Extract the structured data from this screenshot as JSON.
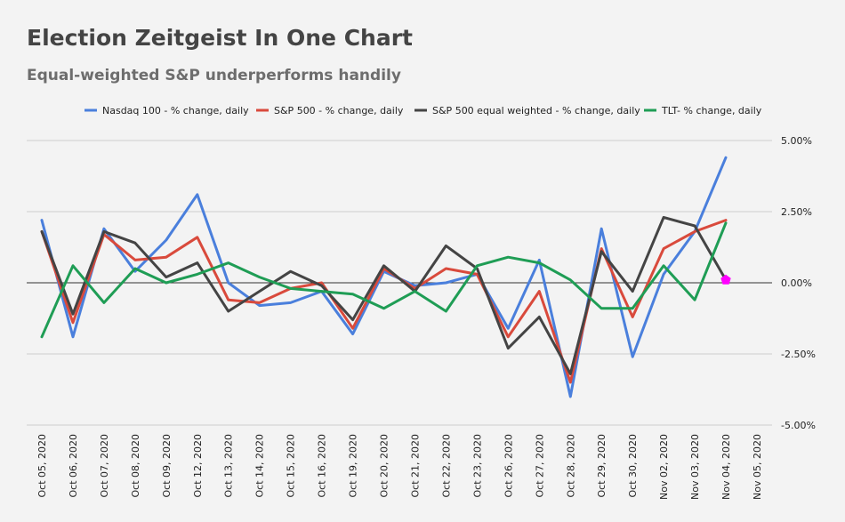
{
  "header": {
    "title": "Election Zeitgeist In One Chart",
    "subtitle": "Equal-weighted S&P underperforms handily"
  },
  "chart_data": {
    "type": "line",
    "title": "Election Zeitgeist In One Chart",
    "subtitle": "Equal-weighted S&P underperforms handily",
    "legend_position": "top",
    "grid": true,
    "ylim": [
      -5,
      5
    ],
    "yticks": [
      5,
      2.5,
      0,
      -2.5,
      -5
    ],
    "ytick_labels": [
      "5.00%",
      "2.50%",
      "0.00%",
      "-2.50%",
      "-5.00%"
    ],
    "x": [
      "Oct 05, 2020",
      "Oct 06, 2020",
      "Oct 07, 2020",
      "Oct 08, 2020",
      "Oct 09, 2020",
      "Oct 12, 2020",
      "Oct 13, 2020",
      "Oct 14, 2020",
      "Oct 15, 2020",
      "Oct 16, 2020",
      "Oct 19, 2020",
      "Oct 20, 2020",
      "Oct 21, 2020",
      "Oct 22, 2020",
      "Oct 23, 2020",
      "Oct 26, 2020",
      "Oct 27, 2020",
      "Oct 28, 2020",
      "Oct 29, 2020",
      "Oct 30, 2020",
      "Nov 02, 2020",
      "Nov 03, 2020",
      "Nov 04, 2020",
      "Nov 05, 2020"
    ],
    "series": [
      {
        "name": "Nasdaq 100 - % change, daily",
        "color": "#4a7fdc",
        "values": [
          2.2,
          -1.9,
          1.9,
          0.4,
          1.5,
          3.1,
          0.0,
          -0.8,
          -0.7,
          -0.3,
          -1.8,
          0.4,
          -0.1,
          0.0,
          0.3,
          -1.6,
          0.8,
          -4.0,
          1.9,
          -2.6,
          0.3,
          1.8,
          4.4,
          null
        ]
      },
      {
        "name": "S&P 500 - % change, daily",
        "color": "#d94a3c",
        "values": [
          1.8,
          -1.4,
          1.7,
          0.8,
          0.9,
          1.6,
          -0.6,
          -0.7,
          -0.2,
          0.0,
          -1.6,
          0.5,
          -0.2,
          0.5,
          0.3,
          -1.9,
          -0.3,
          -3.5,
          1.2,
          -1.2,
          1.2,
          1.8,
          2.2,
          null
        ]
      },
      {
        "name": "S&P 500 equal weighted - % change, daily",
        "color": "#444444",
        "values": [
          1.8,
          -1.1,
          1.8,
          1.4,
          0.2,
          0.7,
          -1.0,
          -0.3,
          0.4,
          -0.1,
          -1.3,
          0.6,
          -0.3,
          1.3,
          0.5,
          -2.3,
          -1.2,
          -3.2,
          1.1,
          -0.3,
          2.3,
          2.0,
          0.1,
          null
        ]
      },
      {
        "name": "TLT- % change, daily",
        "color": "#1f9d55",
        "values": [
          -1.9,
          0.6,
          -0.7,
          0.5,
          0.0,
          0.3,
          0.7,
          0.2,
          -0.2,
          -0.3,
          -0.4,
          -0.9,
          -0.3,
          -1.0,
          0.6,
          0.9,
          0.7,
          0.1,
          -0.9,
          -0.9,
          0.6,
          -0.6,
          2.1,
          null
        ]
      }
    ],
    "annotations": [
      {
        "type": "marker",
        "shape": "pentagon",
        "x": "Nov 04, 2020",
        "y": 0.1,
        "color": "#ff00ff"
      }
    ]
  }
}
